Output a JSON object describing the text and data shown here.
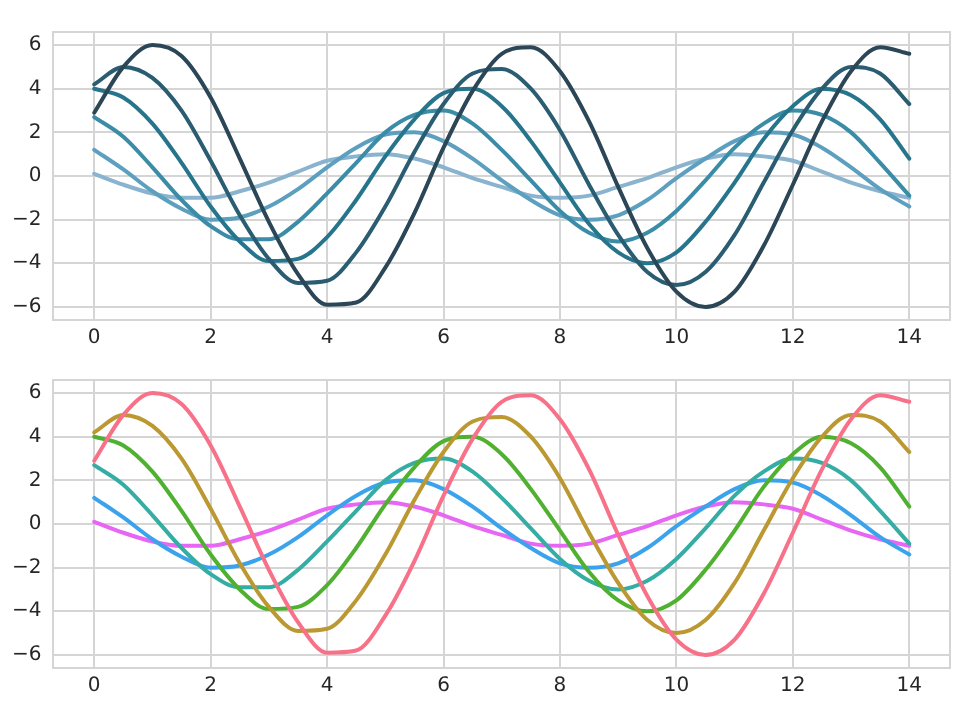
{
  "chart_data": [
    {
      "type": "line",
      "x": [
        0,
        0.5,
        1,
        1.5,
        2,
        2.5,
        3,
        3.5,
        4,
        4.5,
        5,
        5.5,
        6,
        6.5,
        7,
        7.5,
        8,
        8.5,
        9,
        9.5,
        10,
        10.5,
        11,
        11.5,
        12,
        12.5,
        13,
        13.5,
        14
      ],
      "xlim": [
        -0.7,
        14.7
      ],
      "ylim": [
        -6.6,
        6.6
      ],
      "xticks": [
        0,
        2,
        4,
        6,
        8,
        10,
        12,
        14
      ],
      "yticks": [
        -6,
        -4,
        -2,
        0,
        2,
        4,
        6
      ],
      "grid": true,
      "series": [
        {
          "color": "#2b4656",
          "values": [
            2.9,
            5.0,
            6.0,
            5.5,
            3.6,
            0.8,
            -2.1,
            -4.5,
            -5.9,
            -5.8,
            -4.2,
            -1.7,
            1.3,
            3.9,
            5.6,
            5.9,
            4.8,
            2.5,
            -0.5,
            -3.3,
            -5.3,
            -6.0,
            -5.3,
            -3.2,
            -0.4,
            2.5,
            4.8,
            5.9,
            5.6
          ]
        },
        {
          "color": "#2a5d72",
          "values": [
            4.2,
            5.0,
            4.5,
            3.0,
            0.7,
            -1.8,
            -3.8,
            -4.9,
            -4.8,
            -3.5,
            -1.4,
            1.1,
            3.3,
            4.7,
            4.9,
            4.0,
            2.1,
            -0.4,
            -2.7,
            -4.4,
            -5.0,
            -4.4,
            -2.7,
            -0.3,
            2.1,
            4.0,
            5.0,
            4.7,
            3.3
          ]
        },
        {
          "color": "#27758c",
          "values": [
            4.0,
            3.6,
            2.4,
            0.6,
            -1.4,
            -3.0,
            -3.9,
            -3.8,
            -2.8,
            -1.1,
            0.9,
            2.6,
            3.8,
            4.0,
            3.2,
            1.6,
            -0.3,
            -2.2,
            -3.5,
            -4.0,
            -3.5,
            -2.1,
            -0.3,
            1.7,
            3.2,
            4.0,
            3.7,
            2.6,
            0.8
          ]
        },
        {
          "color": "#3b8ca6",
          "values": [
            2.7,
            1.8,
            0.4,
            -1.1,
            -2.3,
            -2.9,
            -2.9,
            -2.1,
            -0.8,
            0.6,
            2.0,
            2.8,
            3.0,
            2.4,
            1.2,
            -0.2,
            -1.6,
            -2.6,
            -3.0,
            -2.6,
            -1.6,
            -0.2,
            1.3,
            2.4,
            3.0,
            2.8,
            2.0,
            0.6,
            -0.9
          ]
        },
        {
          "color": "#5d9fbe",
          "values": [
            1.2,
            0.3,
            -0.7,
            -1.5,
            -2.0,
            -1.9,
            -1.4,
            -0.6,
            0.4,
            1.3,
            1.9,
            2.0,
            1.6,
            0.8,
            -0.2,
            -1.1,
            -1.8,
            -2.0,
            -1.8,
            -1.1,
            -0.1,
            0.8,
            1.6,
            2.0,
            1.9,
            1.3,
            0.4,
            -0.6,
            -1.4
          ]
        },
        {
          "color": "#8ab3cf",
          "values": [
            0.1,
            -0.4,
            -0.8,
            -1.0,
            -1.0,
            -0.7,
            -0.3,
            0.2,
            0.7,
            0.9,
            1.0,
            0.8,
            0.4,
            -0.1,
            -0.5,
            -0.9,
            -1.0,
            -0.9,
            -0.5,
            -0.1,
            0.4,
            0.8,
            1.0,
            0.9,
            0.7,
            0.2,
            -0.3,
            -0.7,
            -1.0
          ]
        }
      ]
    },
    {
      "type": "line",
      "x": [
        0,
        0.5,
        1,
        1.5,
        2,
        2.5,
        3,
        3.5,
        4,
        4.5,
        5,
        5.5,
        6,
        6.5,
        7,
        7.5,
        8,
        8.5,
        9,
        9.5,
        10,
        10.5,
        11,
        11.5,
        12,
        12.5,
        13,
        13.5,
        14
      ],
      "xlim": [
        -0.7,
        14.7
      ],
      "ylim": [
        -6.6,
        6.6
      ],
      "xticks": [
        0,
        2,
        4,
        6,
        8,
        10,
        12,
        14
      ],
      "yticks": [
        -6,
        -4,
        -2,
        0,
        2,
        4,
        6
      ],
      "grid": true,
      "series": [
        {
          "color": "#f77189",
          "values": [
            2.9,
            5.0,
            6.0,
            5.5,
            3.6,
            0.8,
            -2.1,
            -4.5,
            -5.9,
            -5.8,
            -4.2,
            -1.7,
            1.3,
            3.9,
            5.6,
            5.9,
            4.8,
            2.5,
            -0.5,
            -3.3,
            -5.3,
            -6.0,
            -5.3,
            -3.2,
            -0.4,
            2.5,
            4.8,
            5.9,
            5.6
          ]
        },
        {
          "color": "#bb9832",
          "values": [
            4.2,
            5.0,
            4.5,
            3.0,
            0.7,
            -1.8,
            -3.8,
            -4.9,
            -4.8,
            -3.5,
            -1.4,
            1.1,
            3.3,
            4.7,
            4.9,
            4.0,
            2.1,
            -0.4,
            -2.7,
            -4.4,
            -5.0,
            -4.4,
            -2.7,
            -0.3,
            2.1,
            4.0,
            5.0,
            4.7,
            3.3
          ]
        },
        {
          "color": "#50b131",
          "values": [
            4.0,
            3.6,
            2.4,
            0.6,
            -1.4,
            -3.0,
            -3.9,
            -3.8,
            -2.8,
            -1.1,
            0.9,
            2.6,
            3.8,
            4.0,
            3.2,
            1.6,
            -0.3,
            -2.2,
            -3.5,
            -4.0,
            -3.5,
            -2.1,
            -0.3,
            1.7,
            3.2,
            4.0,
            3.7,
            2.6,
            0.8
          ]
        },
        {
          "color": "#36ada4",
          "values": [
            2.7,
            1.8,
            0.4,
            -1.1,
            -2.3,
            -2.9,
            -2.9,
            -2.1,
            -0.8,
            0.6,
            2.0,
            2.8,
            3.0,
            2.4,
            1.2,
            -0.2,
            -1.6,
            -2.6,
            -3.0,
            -2.6,
            -1.6,
            -0.2,
            1.3,
            2.4,
            3.0,
            2.8,
            2.0,
            0.6,
            -0.9
          ]
        },
        {
          "color": "#3ba3ec",
          "values": [
            1.2,
            0.3,
            -0.7,
            -1.5,
            -2.0,
            -1.9,
            -1.4,
            -0.6,
            0.4,
            1.3,
            1.9,
            2.0,
            1.6,
            0.8,
            -0.2,
            -1.1,
            -1.8,
            -2.0,
            -1.8,
            -1.1,
            -0.1,
            0.8,
            1.6,
            2.0,
            1.9,
            1.3,
            0.4,
            -0.6,
            -1.4
          ]
        },
        {
          "color": "#e866f4",
          "values": [
            0.1,
            -0.4,
            -0.8,
            -1.0,
            -1.0,
            -0.7,
            -0.3,
            0.2,
            0.7,
            0.9,
            1.0,
            0.8,
            0.4,
            -0.1,
            -0.5,
            -0.9,
            -1.0,
            -0.9,
            -0.5,
            -0.1,
            0.4,
            0.8,
            1.0,
            0.9,
            0.7,
            0.2,
            -0.3,
            -0.7,
            -1.0
          ]
        }
      ]
    }
  ]
}
